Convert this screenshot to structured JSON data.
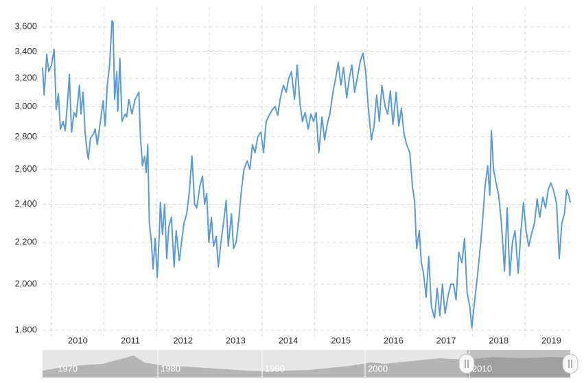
{
  "chart_data": {
    "type": "line",
    "log_y": true,
    "grid": true,
    "x": [
      2009.83,
      2009.86,
      2009.91,
      2009.95,
      2010.0,
      2010.05,
      2010.09,
      2010.13,
      2010.17,
      2010.22,
      2010.26,
      2010.3,
      2010.34,
      2010.38,
      2010.43,
      2010.47,
      2010.53,
      2010.56,
      2010.6,
      2010.64,
      2010.68,
      2010.7,
      2010.74,
      2010.8,
      2010.83,
      2010.87,
      2010.93,
      2010.98,
      2011.02,
      2011.06,
      2011.1,
      2011.15,
      2011.17,
      2011.2,
      2011.24,
      2011.26,
      2011.3,
      2011.34,
      2011.4,
      2011.43,
      2011.47,
      2011.53,
      2011.59,
      2011.66,
      2011.69,
      2011.73,
      2011.77,
      2011.8,
      2011.83,
      2011.86,
      2011.9,
      2011.93,
      2011.97,
      2012.01,
      2012.05,
      2012.07,
      2012.11,
      2012.15,
      2012.19,
      2012.23,
      2012.28,
      2012.33,
      2012.37,
      2012.43,
      2012.48,
      2012.52,
      2012.57,
      2012.62,
      2012.67,
      2012.72,
      2012.76,
      2012.82,
      2012.87,
      2012.91,
      2012.95,
      2012.99,
      2013.04,
      2013.08,
      2013.13,
      2013.17,
      2013.22,
      2013.27,
      2013.32,
      2013.36,
      2013.42,
      2013.46,
      2013.51,
      2013.56,
      2013.61,
      2013.66,
      2013.72,
      2013.77,
      2013.82,
      2013.87,
      2013.92,
      2013.98,
      2014.03,
      2014.08,
      2014.15,
      2014.2,
      2014.25,
      2014.3,
      2014.35,
      2014.41,
      2014.46,
      2014.51,
      2014.56,
      2014.62,
      2014.67,
      2014.72,
      2014.77,
      2014.82,
      2014.88,
      2014.93,
      2014.98,
      2015.03,
      2015.08,
      2015.14,
      2015.19,
      2015.24,
      2015.29,
      2015.35,
      2015.4,
      2015.45,
      2015.5,
      2015.55,
      2015.61,
      2015.66,
      2015.71,
      2015.76,
      2015.81,
      2015.87,
      2015.92,
      2015.97,
      2016.02,
      2016.08,
      2016.13,
      2016.18,
      2016.23,
      2016.28,
      2016.34,
      2016.39,
      2016.44,
      2016.49,
      2016.55,
      2016.6,
      2016.65,
      2016.7,
      2016.75,
      2016.81,
      2016.86,
      2016.9,
      2016.94,
      2016.99,
      2017.03,
      2017.07,
      2017.12,
      2017.17,
      2017.22,
      2017.28,
      2017.33,
      2017.38,
      2017.43,
      2017.48,
      2017.54,
      2017.59,
      2017.64,
      2017.69,
      2017.74,
      2017.8,
      2017.85,
      2017.9,
      2017.95,
      2017.99,
      2018.03,
      2018.08,
      2018.14,
      2018.19,
      2018.24,
      2018.29,
      2018.33,
      2018.36,
      2018.4,
      2018.45,
      2018.5,
      2018.55,
      2018.61,
      2018.66,
      2018.71,
      2018.76,
      2018.81,
      2018.87,
      2018.92,
      2018.97,
      2019.02,
      2019.07,
      2019.13,
      2019.18,
      2019.23,
      2019.28,
      2019.34,
      2019.39,
      2019.44,
      2019.49,
      2019.54,
      2019.6,
      2019.65,
      2019.7,
      2019.75,
      2019.79,
      2019.83,
      2019.86
    ],
    "series": [
      {
        "color": "#5b9bd5",
        "values": [
          3280,
          3080,
          3380,
          3250,
          3300,
          3420,
          2980,
          3090,
          2850,
          2900,
          2840,
          3010,
          3230,
          2830,
          2960,
          2930,
          3150,
          2950,
          3100,
          2820,
          2700,
          2660,
          2790,
          2820,
          2850,
          2750,
          2900,
          3040,
          2870,
          3150,
          3280,
          3650,
          3640,
          3050,
          3250,
          2970,
          3350,
          2900,
          2950,
          2930,
          3050,
          2950,
          3050,
          3100,
          2800,
          2620,
          2680,
          2580,
          2750,
          2300,
          2200,
          2070,
          2220,
          2030,
          2250,
          2410,
          2240,
          2400,
          2120,
          2280,
          2330,
          2080,
          2260,
          2110,
          2220,
          2300,
          2350,
          2470,
          2680,
          2400,
          2380,
          2500,
          2560,
          2400,
          2460,
          2200,
          2330,
          2180,
          2230,
          2080,
          2200,
          2300,
          2420,
          2180,
          2350,
          2170,
          2200,
          2320,
          2480,
          2600,
          2650,
          2600,
          2750,
          2700,
          2800,
          2830,
          2700,
          2900,
          2950,
          2980,
          3000,
          2940,
          3060,
          3150,
          3100,
          3200,
          3250,
          3050,
          3300,
          3030,
          2900,
          2960,
          2850,
          2950,
          2900,
          2960,
          2700,
          2930,
          2780,
          2880,
          2950,
          3100,
          3200,
          3320,
          3150,
          3280,
          3060,
          3200,
          3300,
          3100,
          3200,
          3330,
          3390,
          3250,
          3000,
          2780,
          2870,
          3080,
          2900,
          3150,
          3000,
          2950,
          3110,
          2880,
          3100,
          2870,
          2990,
          2820,
          2750,
          2700,
          2500,
          2420,
          2170,
          2260,
          2100,
          2050,
          1940,
          2130,
          1900,
          1850,
          1980,
          1860,
          2000,
          1870,
          1950,
          2000,
          2000,
          1930,
          2150,
          2100,
          2220,
          1960,
          1900,
          1810,
          1900,
          2000,
          2150,
          2300,
          2500,
          2620,
          2450,
          2840,
          2600,
          2520,
          2450,
          2300,
          2060,
          2380,
          2040,
          2200,
          2260,
          2050,
          2250,
          2410,
          2260,
          2180,
          2250,
          2300,
          2430,
          2330,
          2440,
          2380,
          2480,
          2520,
          2480,
          2400,
          2120,
          2300,
          2350,
          2480,
          2450,
          2410
        ]
      }
    ],
    "xlim": [
      2009.83,
      2019.86
    ],
    "xticks": [
      2010,
      2011,
      2012,
      2013,
      2014,
      2015,
      2016,
      2017,
      2018,
      2019
    ],
    "ylim": [
      1775,
      3768
    ],
    "yticks": [
      {
        "value": 1800,
        "label": "1,800"
      },
      {
        "value": 2000,
        "label": "2,000"
      },
      {
        "value": 2200,
        "label": "2,200"
      },
      {
        "value": 2400,
        "label": "2,400"
      },
      {
        "value": 2600,
        "label": "2,600"
      },
      {
        "value": 2800,
        "label": "2,800"
      },
      {
        "value": 3000,
        "label": "3,000"
      },
      {
        "value": 3200,
        "label": "3,200"
      },
      {
        "value": 3400,
        "label": "3,400"
      },
      {
        "value": 3600,
        "label": "3,600"
      }
    ]
  },
  "navigator": {
    "labels": [
      "1970",
      "1980",
      "1990",
      "2000",
      "2010"
    ]
  }
}
